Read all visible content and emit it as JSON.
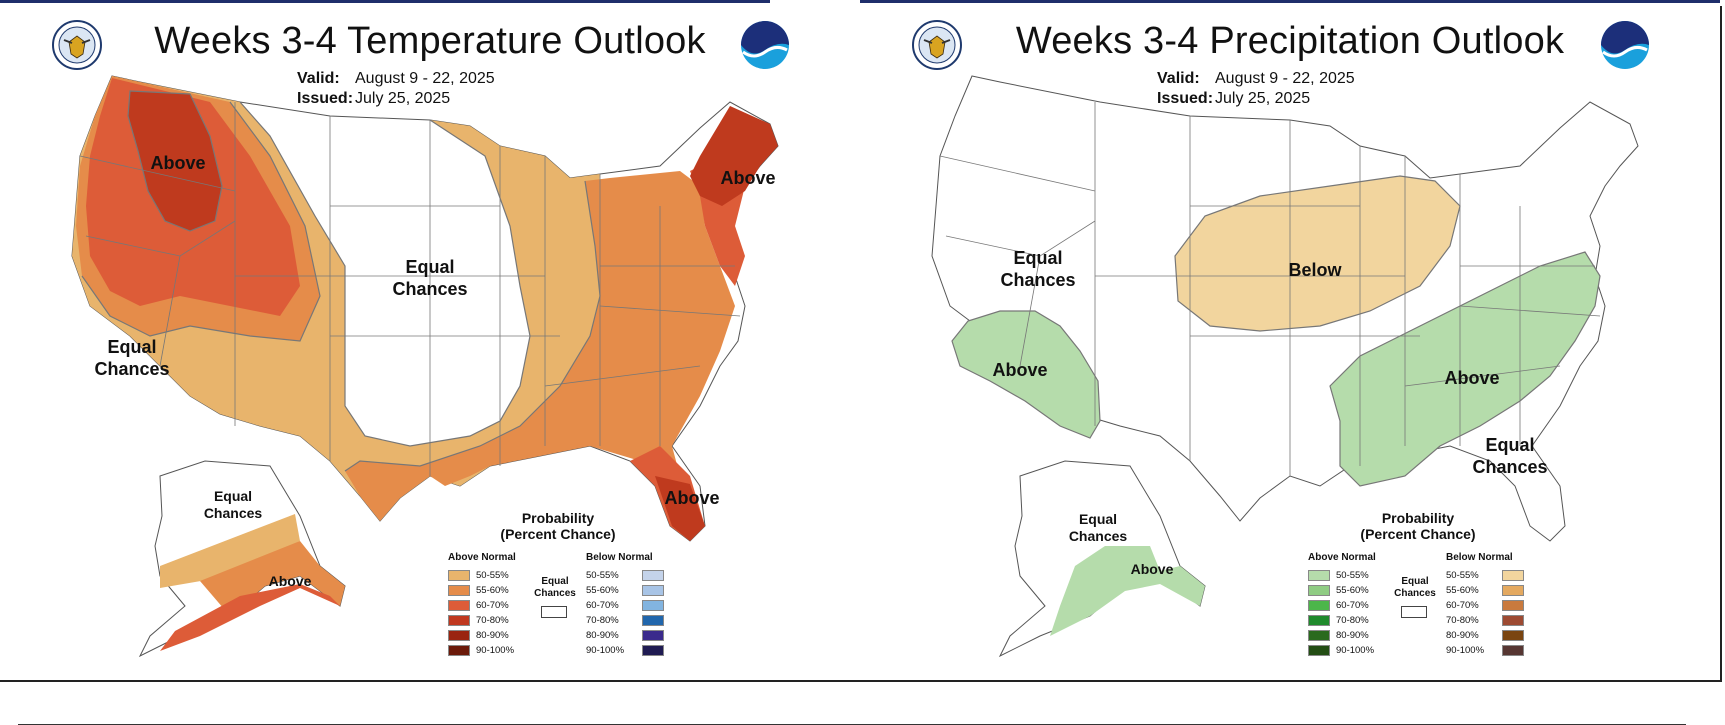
{
  "panels": [
    {
      "title": "Weeks 3-4 Temperature Outlook",
      "valid_label": "Valid:",
      "valid_value": "August 9 - 22, 2025",
      "issued_label": "Issued:",
      "issued_value": "July 25, 2025",
      "labels": {
        "above_northwest": "Above",
        "above_northeast": "Above",
        "above_florida": "Above",
        "above_alaska": "Above",
        "equal_central_1": "Equal",
        "equal_central_2": "Chances",
        "equal_southwest_1": "Equal",
        "equal_southwest_2": "Chances",
        "equal_alaska_1": "Equal",
        "equal_alaska_2": "Chances"
      },
      "legend": {
        "title_1": "Probability",
        "title_2": "(Percent Chance)",
        "above_header": "Above Normal",
        "below_header": "Below Normal",
        "equal_1": "Equal",
        "equal_2": "Chances",
        "ranges": [
          "50-55%",
          "55-60%",
          "60-70%",
          "70-80%",
          "80-90%",
          "90-100%"
        ],
        "above_colors": [
          "#e8b46c",
          "#e58c4a",
          "#dd5c38",
          "#c0381f",
          "#9a2410",
          "#6b1a0a"
        ],
        "below_colors": [
          "#c4d3ea",
          "#a8c4e6",
          "#82b4e0",
          "#2166ac",
          "#3a2a8c",
          "#1f1b52"
        ]
      },
      "colors": {
        "c50": "#e8b46c",
        "c55": "#e58c4a",
        "c60": "#dd5c38",
        "c70": "#bf3a1e"
      }
    },
    {
      "title": "Weeks 3-4 Precipitation Outlook",
      "valid_label": "Valid:",
      "valid_value": "August 9 - 22, 2025",
      "issued_label": "Issued:",
      "issued_value": "July 25, 2025",
      "labels": {
        "equal_west_1": "Equal",
        "equal_west_2": "Chances",
        "below_midwest": "Below",
        "above_southwest": "Above",
        "above_southeast": "Above",
        "equal_southeast_1": "Equal",
        "equal_southeast_2": "Chances",
        "equal_alaska_1": "Equal",
        "equal_alaska_2": "Chances",
        "above_alaska": "Above"
      },
      "legend": {
        "title_1": "Probability",
        "title_2": "(Percent Chance)",
        "above_header": "Above Normal",
        "below_header": "Below Normal",
        "equal_1": "Equal",
        "equal_2": "Chances",
        "ranges": [
          "50-55%",
          "55-60%",
          "60-70%",
          "70-80%",
          "80-90%",
          "90-100%"
        ],
        "above_colors": [
          "#b5dcab",
          "#8fcc83",
          "#4cb64a",
          "#1f8a2c",
          "#2a6a1e",
          "#234d14"
        ],
        "below_colors": [
          "#f2d59e",
          "#e4a960",
          "#c97a3e",
          "#9d4a32",
          "#7a4510",
          "#563632"
        ]
      },
      "colors": {
        "green50": "#b5dcab",
        "tan50": "#f2d59e"
      }
    }
  ]
}
